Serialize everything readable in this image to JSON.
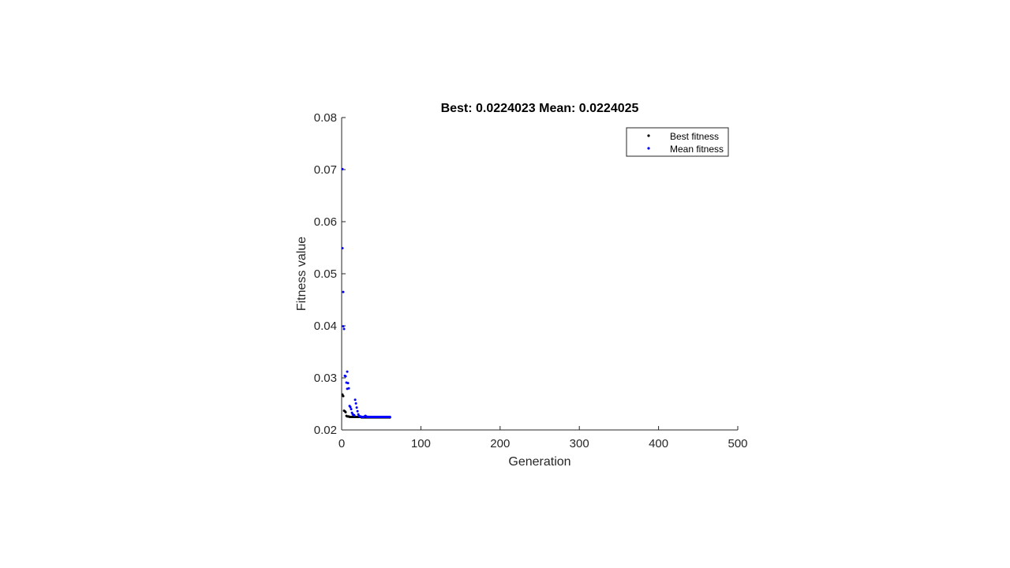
{
  "chart_data": {
    "type": "scatter",
    "title": "Best: 0.0224023 Mean: 0.0224025",
    "xlabel": "Generation",
    "ylabel": "Fitness value",
    "xlim": [
      0,
      500
    ],
    "ylim": [
      0.02,
      0.08
    ],
    "xticks": [
      "0",
      "100",
      "200",
      "300",
      "400",
      "500"
    ],
    "yticks": [
      "0.02",
      "0.03",
      "0.04",
      "0.05",
      "0.06",
      "0.07",
      "0.08"
    ],
    "grid": false,
    "legend_position": "top-right",
    "series": [
      {
        "name": "Best fitness",
        "color": "#000000",
        "points": [
          [
            1,
            0.0268
          ],
          [
            2,
            0.0265
          ],
          [
            3,
            0.0237
          ],
          [
            4,
            0.0236
          ],
          [
            5,
            0.0234
          ],
          [
            6,
            0.0227
          ],
          [
            7,
            0.0226
          ],
          [
            8,
            0.0226
          ],
          [
            9,
            0.0226
          ],
          [
            10,
            0.0225
          ],
          [
            11,
            0.0225
          ],
          [
            12,
            0.0225
          ],
          [
            13,
            0.0225
          ],
          [
            14,
            0.0225
          ],
          [
            15,
            0.0225
          ],
          [
            16,
            0.0225
          ],
          [
            17,
            0.0225
          ],
          [
            18,
            0.0225
          ],
          [
            19,
            0.0225
          ],
          [
            20,
            0.0225
          ],
          [
            21,
            0.0225
          ],
          [
            22,
            0.0225
          ],
          [
            23,
            0.0225
          ],
          [
            24,
            0.0225
          ],
          [
            25,
            0.0224
          ],
          [
            26,
            0.0224
          ],
          [
            27,
            0.0224
          ],
          [
            28,
            0.0224
          ],
          [
            29,
            0.0224
          ],
          [
            30,
            0.0224
          ],
          [
            31,
            0.0224
          ],
          [
            32,
            0.0224
          ],
          [
            33,
            0.0224
          ],
          [
            34,
            0.0224
          ],
          [
            35,
            0.0224
          ],
          [
            36,
            0.0224
          ],
          [
            37,
            0.0224
          ],
          [
            38,
            0.0224
          ],
          [
            39,
            0.0224
          ],
          [
            40,
            0.0224
          ],
          [
            41,
            0.0224
          ],
          [
            42,
            0.0224
          ],
          [
            43,
            0.0224
          ],
          [
            44,
            0.0224
          ],
          [
            45,
            0.0224
          ],
          [
            46,
            0.0224
          ],
          [
            47,
            0.0224
          ],
          [
            48,
            0.0224
          ],
          [
            49,
            0.0224
          ],
          [
            50,
            0.0224
          ],
          [
            51,
            0.0224
          ],
          [
            52,
            0.0224
          ],
          [
            53,
            0.0224
          ],
          [
            54,
            0.0224
          ],
          [
            55,
            0.0224
          ],
          [
            56,
            0.0224
          ],
          [
            57,
            0.0224
          ],
          [
            58,
            0.0224
          ],
          [
            59,
            0.0224
          ],
          [
            60,
            0.0224
          ],
          [
            61,
            0.0224
          ]
        ]
      },
      {
        "name": "Mean fitness",
        "color": "#0000ff",
        "points": [
          [
            1,
            0.0701
          ],
          [
            1,
            0.0549
          ],
          [
            2,
            0.0465
          ],
          [
            2,
            0.0399
          ],
          [
            3,
            0.0394
          ],
          [
            4,
            0.0304
          ],
          [
            5,
            0.0303
          ],
          [
            6,
            0.0291
          ],
          [
            7,
            0.0312
          ],
          [
            7,
            0.0279
          ],
          [
            8,
            0.029
          ],
          [
            9,
            0.028
          ],
          [
            10,
            0.0246
          ],
          [
            11,
            0.0244
          ],
          [
            12,
            0.024
          ],
          [
            13,
            0.0233
          ],
          [
            14,
            0.023
          ],
          [
            15,
            0.0229
          ],
          [
            16,
            0.0228
          ],
          [
            17,
            0.0258
          ],
          [
            18,
            0.0251
          ],
          [
            19,
            0.0243
          ],
          [
            20,
            0.0236
          ],
          [
            21,
            0.023
          ],
          [
            22,
            0.0227
          ],
          [
            23,
            0.0226
          ],
          [
            24,
            0.0226
          ],
          [
            25,
            0.0225
          ],
          [
            26,
            0.0225
          ],
          [
            27,
            0.0225
          ],
          [
            28,
            0.0225
          ],
          [
            29,
            0.0226
          ],
          [
            30,
            0.0227
          ],
          [
            31,
            0.0226
          ],
          [
            32,
            0.0225
          ],
          [
            33,
            0.0225
          ],
          [
            34,
            0.0225
          ],
          [
            35,
            0.0225
          ],
          [
            36,
            0.0225
          ],
          [
            37,
            0.0225
          ],
          [
            38,
            0.0225
          ],
          [
            39,
            0.0225
          ],
          [
            40,
            0.0225
          ],
          [
            41,
            0.0225
          ],
          [
            42,
            0.0225
          ],
          [
            43,
            0.0225
          ],
          [
            44,
            0.0225
          ],
          [
            45,
            0.0225
          ],
          [
            46,
            0.0225
          ],
          [
            47,
            0.0225
          ],
          [
            48,
            0.0225
          ],
          [
            49,
            0.0225
          ],
          [
            50,
            0.0225
          ],
          [
            51,
            0.0225
          ],
          [
            52,
            0.0225
          ],
          [
            53,
            0.0225
          ],
          [
            54,
            0.0225
          ],
          [
            55,
            0.0225
          ],
          [
            56,
            0.0225
          ],
          [
            57,
            0.0225
          ],
          [
            58,
            0.0225
          ],
          [
            59,
            0.0225
          ],
          [
            60,
            0.0225
          ],
          [
            61,
            0.0225
          ]
        ]
      }
    ]
  }
}
